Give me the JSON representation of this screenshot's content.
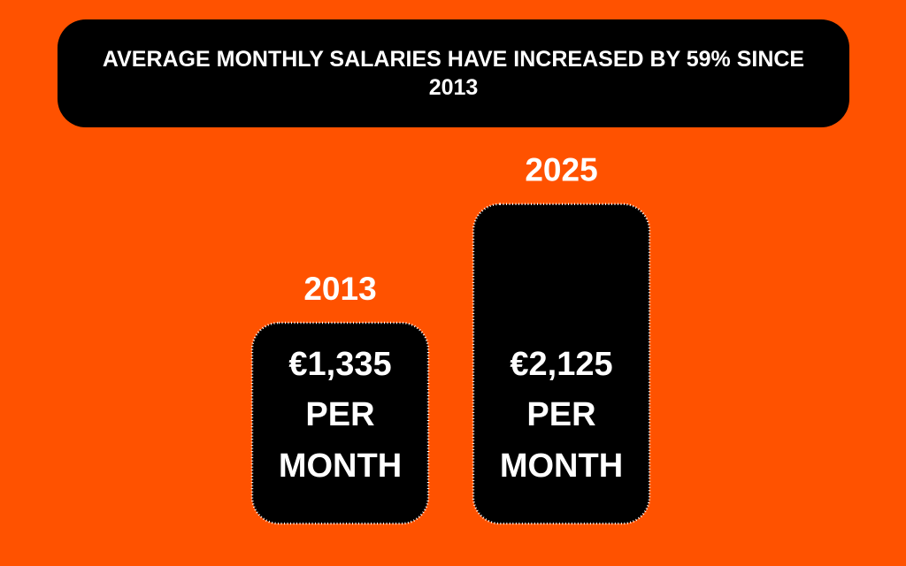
{
  "chart_data": {
    "type": "bar",
    "title": "AVERAGE MONTHLY SALARIES HAVE INCREASED BY 59% SINCE 2013",
    "categories": [
      "2013",
      "2025"
    ],
    "values": [
      1335,
      2125
    ],
    "value_labels": [
      "€1,335",
      "€2,125"
    ],
    "unit_lines": [
      "PER",
      "MONTH"
    ],
    "color": "#000000"
  }
}
